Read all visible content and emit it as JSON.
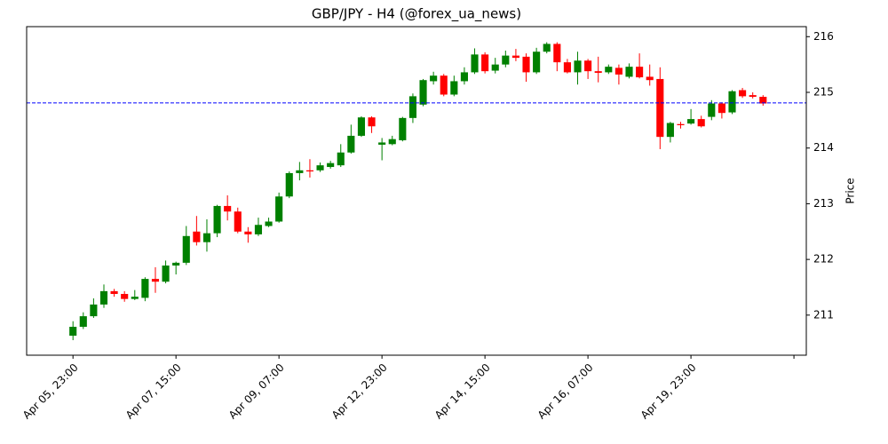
{
  "chart_data": {
    "type": "candlestick",
    "title": "GBP/JPY - H4 (@forex_ua_news)",
    "y_label": "Price",
    "up_color": "green",
    "down_color": "red",
    "open": [
      210.63,
      210.79,
      210.98,
      211.19,
      211.43,
      211.38,
      211.29,
      211.31,
      211.65,
      211.6,
      211.89,
      211.94,
      212.5,
      212.31,
      212.47,
      212.96,
      212.86,
      212.5,
      212.45,
      212.6,
      212.68,
      213.13,
      213.55,
      213.6,
      213.6,
      213.66,
      213.69,
      213.92,
      214.22,
      214.55,
      214.06,
      214.07,
      214.14,
      214.54,
      214.78,
      215.2,
      215.3,
      214.96,
      215.2,
      215.36,
      215.68,
      215.39,
      215.5,
      215.66,
      215.64,
      215.36,
      215.73,
      215.87,
      215.54,
      215.36,
      215.57,
      215.38,
      215.36,
      215.44,
      215.28,
      215.46,
      215.28,
      215.24,
      214.2,
      214.43,
      214.44,
      214.52,
      214.56,
      214.8,
      214.64,
      215.04,
      214.95,
      214.92
    ],
    "high": [
      210.89,
      211.05,
      211.3,
      211.55,
      211.47,
      211.43,
      211.45,
      211.68,
      211.86,
      211.98,
      211.96,
      212.6,
      212.78,
      212.72,
      212.98,
      213.15,
      212.93,
      212.58,
      212.75,
      212.75,
      213.2,
      213.58,
      213.75,
      213.8,
      213.74,
      213.77,
      214.07,
      214.42,
      214.57,
      214.57,
      214.18,
      214.22,
      214.56,
      214.98,
      215.24,
      215.37,
      215.33,
      215.3,
      215.45,
      215.79,
      215.72,
      215.62,
      215.75,
      215.78,
      215.7,
      215.8,
      215.9,
      215.9,
      215.6,
      215.73,
      215.6,
      215.64,
      215.5,
      215.5,
      215.52,
      215.7,
      215.5,
      215.45,
      214.47,
      214.47,
      214.7,
      214.58,
      214.86,
      214.82,
      215.04,
      215.08,
      215.0,
      214.95
    ],
    "low": [
      210.55,
      210.75,
      210.95,
      211.13,
      211.33,
      211.24,
      211.27,
      211.25,
      211.4,
      211.57,
      211.73,
      211.9,
      212.25,
      212.14,
      212.4,
      212.7,
      212.47,
      212.3,
      212.42,
      212.58,
      212.66,
      213.1,
      213.42,
      213.47,
      213.57,
      213.63,
      213.66,
      213.9,
      214.2,
      214.27,
      213.78,
      214.05,
      214.12,
      214.45,
      214.75,
      215.14,
      214.93,
      214.93,
      215.14,
      215.33,
      215.34,
      215.34,
      215.45,
      215.56,
      215.19,
      215.33,
      215.7,
      215.38,
      215.34,
      215.14,
      215.24,
      215.18,
      215.33,
      215.14,
      215.25,
      215.25,
      215.12,
      213.98,
      214.1,
      214.35,
      214.42,
      214.37,
      214.5,
      214.53,
      214.61,
      214.9,
      214.89,
      214.76
    ],
    "close": [
      210.79,
      210.98,
      211.19,
      211.43,
      211.38,
      211.29,
      211.33,
      211.65,
      211.6,
      211.89,
      211.94,
      212.42,
      212.31,
      212.47,
      212.96,
      212.86,
      212.5,
      212.45,
      212.62,
      212.68,
      213.13,
      213.55,
      213.6,
      213.58,
      213.69,
      213.73,
      213.92,
      214.22,
      214.55,
      214.39,
      214.1,
      214.16,
      214.54,
      214.93,
      215.22,
      215.3,
      214.96,
      215.2,
      215.36,
      215.68,
      215.38,
      215.5,
      215.66,
      215.62,
      215.36,
      215.73,
      215.87,
      215.54,
      215.36,
      215.57,
      215.38,
      215.35,
      215.46,
      215.32,
      215.46,
      215.27,
      215.22,
      214.2,
      214.45,
      214.41,
      214.52,
      214.39,
      214.8,
      214.63,
      215.02,
      214.93,
      214.92,
      214.8
    ],
    "hline": {
      "value": 214.81,
      "color": "blue"
    },
    "xlim": [
      -4.5,
      71.2
    ],
    "xticks": [
      0,
      10,
      20,
      30,
      40,
      50,
      60,
      70
    ],
    "xtick_labels": [
      "Apr 05, 23:00",
      "Apr 07, 15:00",
      "Apr 09, 07:00",
      "Apr 12, 23:00",
      "Apr 14, 15:00",
      "Apr 16, 07:00",
      "Apr 19, 23:00",
      null
    ],
    "ylim": [
      210.28,
      216.18
    ],
    "yticks": [
      211,
      212,
      213,
      214,
      215,
      216
    ]
  }
}
